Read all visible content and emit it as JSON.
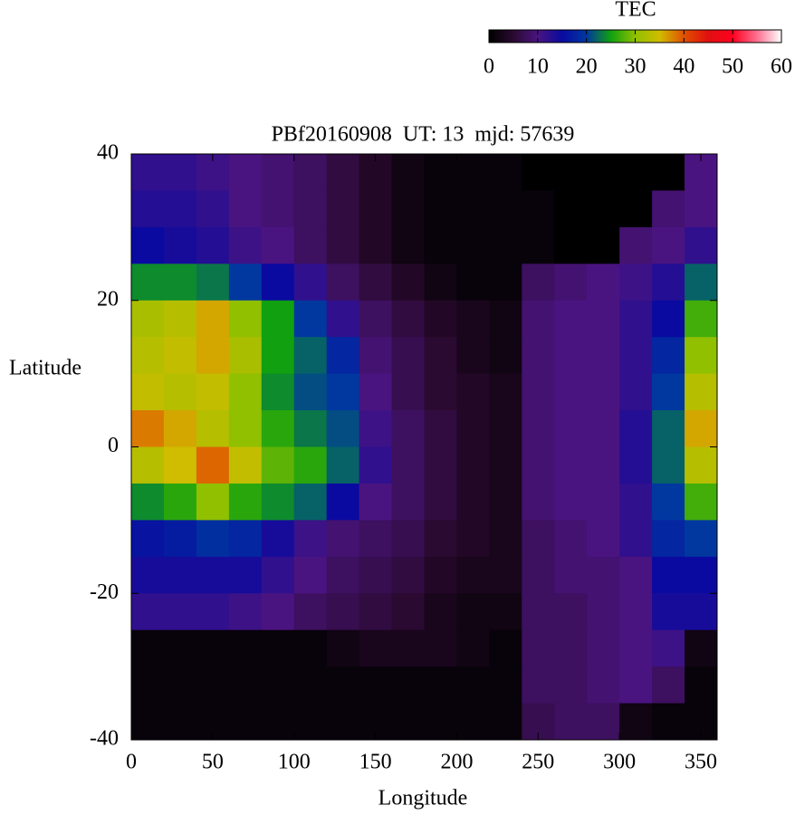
{
  "chart_data": {
    "type": "heatmap",
    "title": "PBf20160908  UT: 13  mjd: 57639",
    "xlabel": "Longitude",
    "ylabel": "Latitude",
    "colorbar_label": "TEC",
    "x": [
      10,
      30,
      50,
      70,
      90,
      110,
      130,
      150,
      170,
      190,
      210,
      230,
      250,
      270,
      290,
      310,
      330,
      350
    ],
    "y": [
      37.5,
      32.5,
      27.5,
      22.5,
      17.5,
      12.5,
      7.5,
      2.5,
      -2.5,
      -7.5,
      -12.5,
      -17.5,
      -22.5,
      -27.5,
      -32.5,
      -37.5
    ],
    "z": [
      [
        12,
        12,
        11,
        10,
        9,
        8,
        6,
        4,
        2,
        1,
        1,
        1,
        0,
        0,
        0,
        0,
        0,
        10
      ],
      [
        13,
        13,
        12,
        10,
        9,
        8,
        6,
        4,
        2,
        1,
        1,
        1,
        1,
        0,
        0,
        0,
        9,
        10
      ],
      [
        15,
        14,
        13,
        11,
        10,
        8,
        6,
        4,
        2,
        1,
        1,
        1,
        1,
        0,
        0,
        9,
        10,
        12
      ],
      [
        24,
        24,
        23,
        20,
        15,
        12,
        8,
        6,
        4,
        2,
        1,
        1,
        8,
        9,
        10,
        11,
        13,
        22
      ],
      [
        32,
        33,
        36,
        30,
        25,
        20,
        12,
        8,
        6,
        4,
        3,
        2,
        9,
        10,
        10,
        12,
        15,
        27
      ],
      [
        33,
        34,
        36,
        32,
        25,
        22,
        18,
        9,
        7,
        5,
        3,
        2,
        9,
        10,
        10,
        12,
        18,
        30
      ],
      [
        34,
        33,
        34,
        30,
        24,
        21,
        20,
        10,
        7,
        5,
        4,
        3,
        9,
        10,
        10,
        12,
        20,
        33
      ],
      [
        38,
        36,
        33,
        30,
        26,
        23,
        21,
        11,
        8,
        6,
        4,
        3,
        9,
        10,
        10,
        13,
        22,
        36
      ],
      [
        33,
        35,
        39,
        34,
        28,
        26,
        22,
        12,
        8,
        6,
        4,
        3,
        9,
        10,
        10,
        13,
        22,
        33
      ],
      [
        24,
        26,
        30,
        26,
        24,
        22,
        15,
        10,
        8,
        6,
        4,
        3,
        9,
        10,
        10,
        12,
        20,
        27
      ],
      [
        16,
        17,
        19,
        18,
        14,
        11,
        9,
        8,
        7,
        5,
        4,
        3,
        8,
        9,
        10,
        12,
        18,
        20
      ],
      [
        14,
        14,
        14,
        14,
        12,
        10,
        8,
        7,
        6,
        4,
        3,
        3,
        8,
        9,
        9,
        10,
        15,
        15
      ],
      [
        12,
        12,
        12,
        11,
        10,
        8,
        7,
        6,
        5,
        3,
        2,
        2,
        8,
        8,
        9,
        10,
        14,
        14
      ],
      [
        1,
        1,
        1,
        1,
        1,
        1,
        2,
        3,
        3,
        3,
        2,
        1,
        8,
        8,
        9,
        10,
        11,
        2
      ],
      [
        1,
        1,
        1,
        1,
        1,
        1,
        1,
        1,
        1,
        1,
        1,
        1,
        8,
        8,
        9,
        10,
        8,
        1
      ],
      [
        1,
        1,
        1,
        1,
        1,
        1,
        1,
        1,
        1,
        1,
        1,
        1,
        7,
        8,
        8,
        2,
        1,
        1
      ]
    ],
    "xlim": [
      0,
      360
    ],
    "xticks": [
      0,
      50,
      100,
      150,
      200,
      250,
      300,
      350
    ],
    "ylim": [
      -40,
      40
    ],
    "yticks": [
      -40,
      -20,
      0,
      20,
      40
    ],
    "clim": [
      0,
      60
    ],
    "cticks": [
      0,
      10,
      20,
      30,
      40,
      50,
      60
    ],
    "colormap": [
      "#000000",
      "#2a0a30",
      "#4a1480",
      "#0a0aa0",
      "#0038a0",
      "#10a010",
      "#90c000",
      "#d0bc00",
      "#e05000",
      "#e01010",
      "#ff0020",
      "#ff7090",
      "#ffffff"
    ]
  }
}
